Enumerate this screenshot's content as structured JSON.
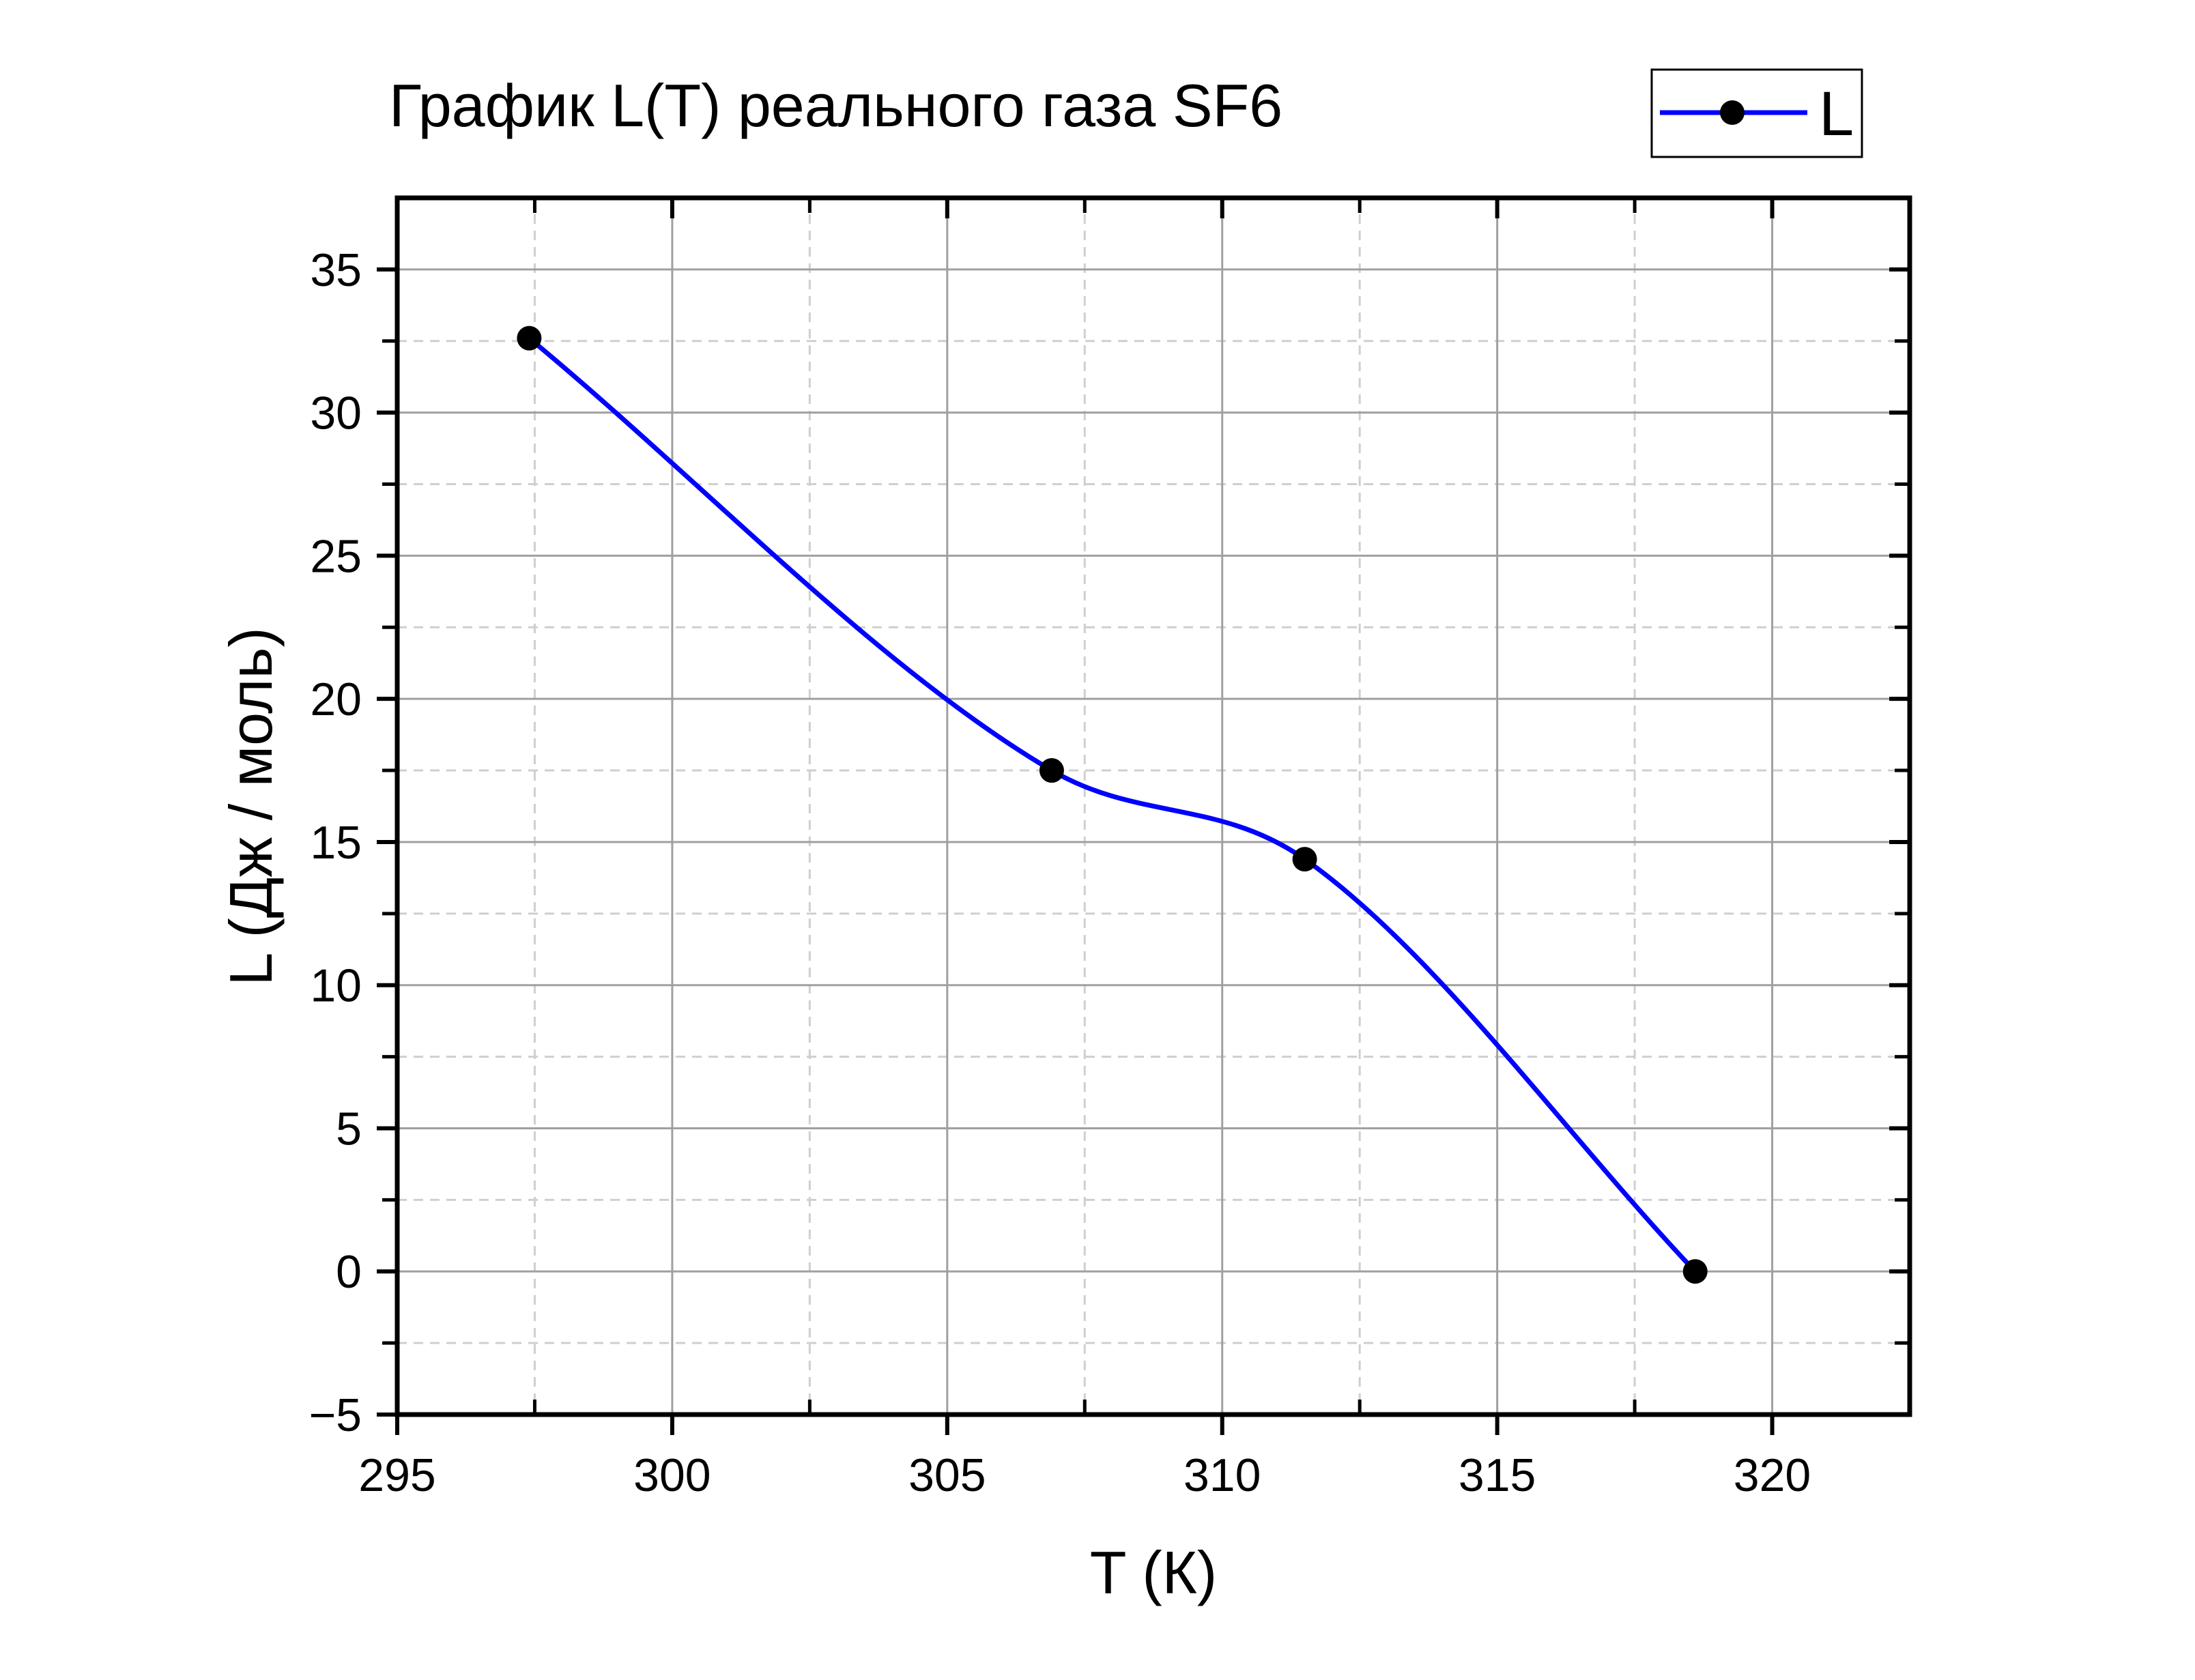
{
  "chart_data": {
    "type": "line",
    "title": "График L(T) реального газа SF6",
    "xlabel": "T (К)",
    "ylabel": "L (Дж / моль)",
    "xlim": [
      295,
      322.5
    ],
    "ylim": [
      -5,
      37.5
    ],
    "xticks": [
      295,
      300,
      305,
      310,
      315,
      320
    ],
    "yticks": [
      -5,
      0,
      5,
      10,
      15,
      20,
      25,
      30,
      35
    ],
    "x_tick_labels": [
      "295",
      "300",
      "305",
      "310",
      "315",
      "320"
    ],
    "y_tick_labels": [
      "−5",
      "0",
      "5",
      "10",
      "15",
      "20",
      "25",
      "30",
      "35"
    ],
    "grid": true,
    "legend_position": "top-right",
    "series": [
      {
        "name": "L",
        "color": "#0000ff",
        "marker": "circle",
        "marker_color": "#000000",
        "smooth": true,
        "x": [
          297.4,
          306.9,
          311.5,
          318.6
        ],
        "y": [
          32.6,
          17.5,
          14.4,
          0.0
        ]
      }
    ]
  }
}
